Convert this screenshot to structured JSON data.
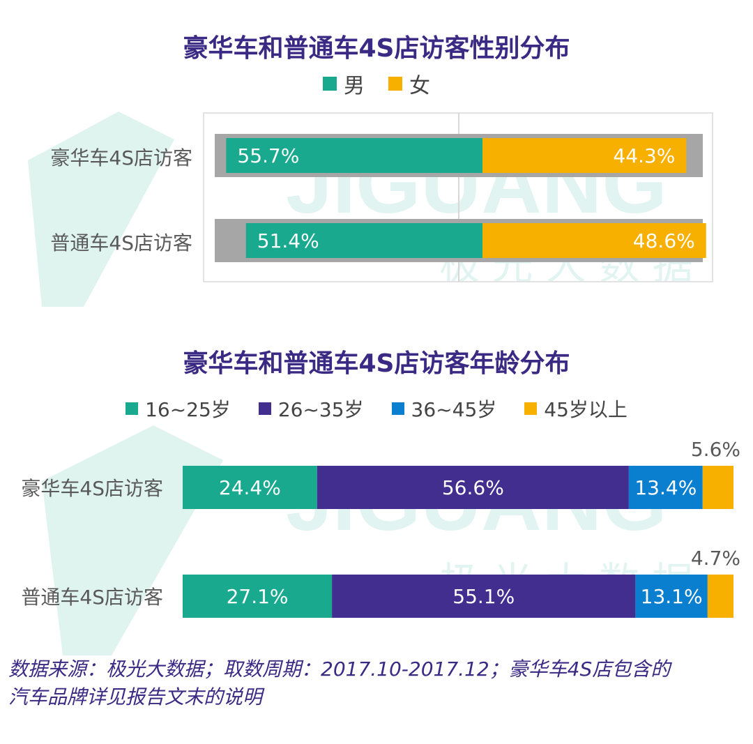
{
  "watermark": {
    "brand_text": "JIGUANG",
    "cn_text": "极 光 大 数 据"
  },
  "chart_data": [
    {
      "type": "bar",
      "orientation": "horizontal",
      "stacked": true,
      "title": "豪华车和普通车4S店访客性别分布",
      "categories": [
        "豪华车4S店访客",
        "普通车4S店访客"
      ],
      "series": [
        {
          "name": "男",
          "color": "#19a98f",
          "values": [
            55.7,
            51.4
          ],
          "labels": [
            "55.7%",
            "51.4%"
          ]
        },
        {
          "name": "女",
          "color": "#f7b000",
          "values": [
            44.3,
            48.6
          ],
          "labels": [
            "44.3%",
            "48.6%"
          ]
        }
      ],
      "xlim": [
        0,
        100
      ],
      "legend": "top",
      "grid": false
    },
    {
      "type": "bar",
      "orientation": "horizontal",
      "stacked": true,
      "title": "豪华车和普通车4S店访客年龄分布",
      "categories": [
        "豪华车4S店访客",
        "普通车4S店访客"
      ],
      "series": [
        {
          "name": "16~25岁",
          "color": "#19a98f",
          "values": [
            24.4,
            27.1
          ],
          "labels": [
            "24.4%",
            "27.1%"
          ]
        },
        {
          "name": "26~35岁",
          "color": "#412e8f",
          "values": [
            56.6,
            55.1
          ],
          "labels": [
            "56.6%",
            "55.1%"
          ]
        },
        {
          "name": "36~45岁",
          "color": "#0a7fd0",
          "values": [
            13.4,
            13.1
          ],
          "labels": [
            "13.4%",
            "13.1%"
          ]
        },
        {
          "name": "45岁以上",
          "color": "#f7b000",
          "values": [
            5.6,
            4.7
          ],
          "labels": [
            "5.6%",
            "4.7%"
          ]
        }
      ],
      "xlim": [
        0,
        100
      ],
      "legend": "top",
      "grid": false
    }
  ],
  "footnote": {
    "line1": "数据来源：极光大数据；取数周期：2017.10-2017.12；豪华车4S店包含的",
    "line2": "汽车品牌详见报告文末的说明"
  }
}
